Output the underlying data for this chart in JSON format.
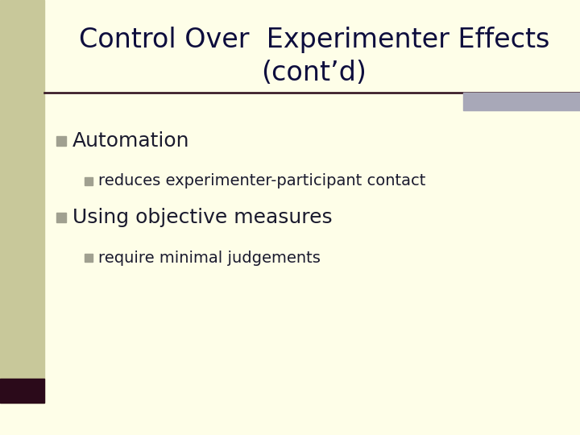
{
  "title_line1": "Control Over  Experimenter Effects",
  "title_line2": "(cont’d)",
  "slide_bg": "#fefee8",
  "left_bar_color": "#c8c89a",
  "left_bar_dark": "#2b0a1a",
  "right_bar_color": "#a8a8b8",
  "divider_color": "#2b0a1a",
  "title_color": "#0d0d3d",
  "title_fontsize": 24,
  "bullet1_text": "Automation",
  "sub1_text": "reduces experimenter-participant contact",
  "bullet2_text": "Using objective measures",
  "sub2_text": "require minimal judgements",
  "bullet_color": "#a0a090",
  "sub_bullet_color": "#a0a090",
  "text_color": "#1a1a2e",
  "bullet_fontsize": 18,
  "sub_fontsize": 14
}
